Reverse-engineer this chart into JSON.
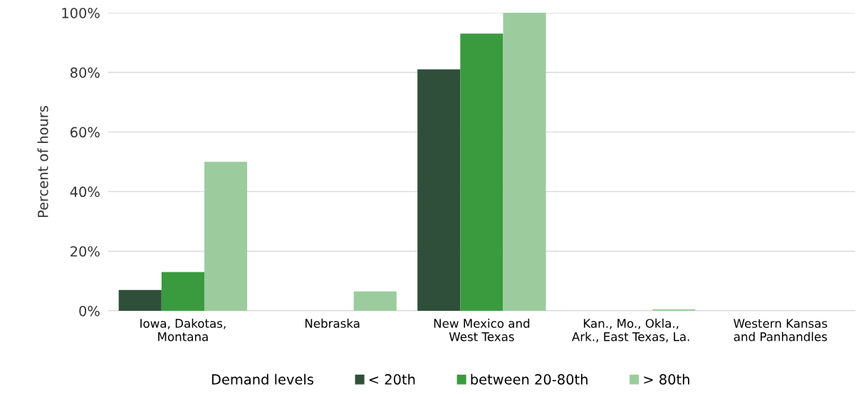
{
  "chart_data": {
    "type": "bar",
    "ylabel": "Percent of hours",
    "legend_title": "Demand levels",
    "categories": [
      "Iowa, Dakotas,\nMontana",
      "Nebraska",
      "New Mexico and\nWest Texas",
      "Kan., Mo., Okla.,\nArk., East Texas, La.",
      "Western Kansas\nand Panhandles"
    ],
    "series": [
      {
        "name": "< 20th",
        "color": "#2f4f3a",
        "values": [
          7,
          0,
          81,
          0,
          0
        ]
      },
      {
        "name": "between 20-80th",
        "color": "#3a9a3e",
        "values": [
          13,
          0,
          93,
          0,
          0
        ]
      },
      {
        "name": "> 80th",
        "color": "#9ccc9e",
        "values": [
          50,
          6.5,
          100,
          0.5,
          0
        ]
      }
    ],
    "ylim": [
      0,
      100
    ],
    "yticks": [
      {
        "value": 0,
        "label": "0%"
      },
      {
        "value": 20,
        "label": "20%"
      },
      {
        "value": 40,
        "label": "40%"
      },
      {
        "value": 60,
        "label": "60%"
      },
      {
        "value": 80,
        "label": "80%"
      },
      {
        "value": 100,
        "label": "100%"
      }
    ],
    "grid": "y",
    "legend": "bottom"
  }
}
